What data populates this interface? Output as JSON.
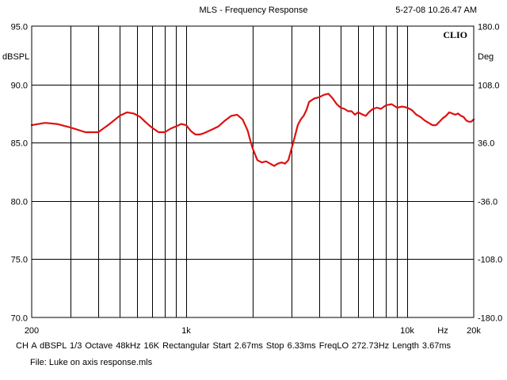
{
  "title": "MLS - Frequency Response",
  "timestamp": "5-27-08 10.26.47 AM",
  "brand": "CLIO",
  "footer": {
    "params": "CH A   dBSPL   1/3 Octave   48kHz   16K   Rectangular   Start 2.67ms    Stop 6.33ms    FreqLO 272.73Hz    Length 3.67ms",
    "file": "File: Luke on axis response.mls"
  },
  "chart_data": {
    "type": "line",
    "x_scale": "log",
    "xlim": [
      200,
      20000
    ],
    "ylim": [
      70,
      95
    ],
    "y2lim": [
      -180,
      180
    ],
    "ylabel": "dBSPL",
    "y2label": "Deg",
    "xlabel": "Hz",
    "grid": true,
    "line_color": "#dd1111",
    "y_ticks": [
      "95.0",
      "90.0",
      "85.0",
      "80.0",
      "75.0",
      "70.0"
    ],
    "y2_ticks": [
      "180.0",
      "108.0",
      "36.0",
      "-36.0",
      "-108.0",
      "-180.0"
    ],
    "x_tick_labels": [
      {
        "f": 200,
        "label": "200"
      },
      {
        "f": 1000,
        "label": "1k"
      },
      {
        "f": 10000,
        "label": "10k"
      },
      {
        "f": 20000,
        "label": "20k"
      }
    ],
    "x_grid": [
      300,
      400,
      500,
      600,
      700,
      800,
      900,
      1000,
      2000,
      3000,
      4000,
      5000,
      6000,
      7000,
      8000,
      9000,
      10000
    ],
    "series": [
      {
        "x": [
          200,
          230,
          260,
          300,
          350,
          400,
          450,
          500,
          540,
          580,
          620,
          660,
          700,
          750,
          800,
          850,
          900,
          950,
          1000,
          1050,
          1100,
          1150,
          1200,
          1300,
          1400,
          1500,
          1600,
          1700,
          1800,
          1850,
          1900,
          1950,
          2000,
          2100,
          2200,
          2300,
          2400,
          2500,
          2600,
          2700,
          2800,
          2900,
          3000,
          3100,
          3200,
          3300,
          3400,
          3500,
          3600,
          3800,
          4000,
          4200,
          4400,
          4600,
          4800,
          5000,
          5200,
          5400,
          5600,
          5800,
          6000,
          6300,
          6500,
          6700,
          7000,
          7300,
          7600,
          8000,
          8500,
          9000,
          9500,
          10000,
          10500,
          11000,
          11500,
          12000,
          12500,
          13000,
          13500,
          14000,
          14500,
          15000,
          15500,
          16000,
          16500,
          17000,
          17500,
          18000,
          18500,
          19000,
          19500,
          20000
        ],
        "y": [
          86.5,
          86.7,
          86.6,
          86.3,
          85.9,
          85.9,
          86.6,
          87.3,
          87.6,
          87.5,
          87.2,
          86.7,
          86.3,
          85.9,
          85.9,
          86.2,
          86.4,
          86.6,
          86.5,
          86.0,
          85.7,
          85.7,
          85.8,
          86.1,
          86.4,
          86.9,
          87.3,
          87.4,
          87.0,
          86.5,
          86.0,
          85.2,
          84.5,
          83.5,
          83.3,
          83.4,
          83.2,
          83.0,
          83.2,
          83.3,
          83.2,
          83.5,
          84.5,
          85.5,
          86.5,
          87.0,
          87.3,
          87.8,
          88.5,
          88.8,
          88.9,
          89.1,
          89.2,
          88.8,
          88.3,
          88.0,
          87.9,
          87.7,
          87.7,
          87.4,
          87.6,
          87.4,
          87.3,
          87.6,
          87.9,
          88.0,
          87.9,
          88.2,
          88.3,
          88.0,
          88.1,
          88.0,
          87.8,
          87.4,
          87.2,
          86.9,
          86.7,
          86.5,
          86.5,
          86.8,
          87.1,
          87.3,
          87.6,
          87.5,
          87.4,
          87.5,
          87.3,
          87.2,
          86.9,
          86.8,
          86.8,
          87.0
        ]
      }
    ]
  }
}
